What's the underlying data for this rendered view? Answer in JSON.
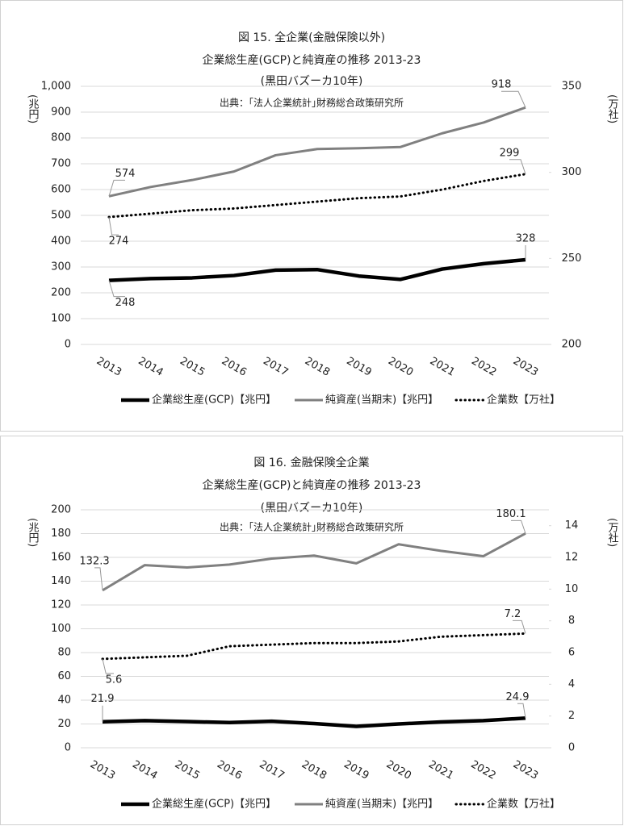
{
  "chart_data": [
    {
      "type": "line",
      "title": "図 15.  全企業(金融保険以外)",
      "subtitle": [
        "企業総生産(GCP)と純資産の推移  2013-23",
        "(黒田バズーカ10年)"
      ],
      "source": "出典：｢法人企業統計｣財務総合政策研究所",
      "y_label": "(兆円)",
      "y2_label": "(万社)",
      "categories": [
        "2013",
        "2014",
        "2015",
        "2016",
        "2017",
        "2018",
        "2019",
        "2020",
        "2021",
        "2022",
        "2023"
      ],
      "ylim": [
        0,
        1000
      ],
      "yticks": [
        0,
        100,
        200,
        300,
        400,
        500,
        600,
        700,
        800,
        900,
        {
          "value": 1000,
          "label": "1,000"
        }
      ],
      "y2lim": [
        200,
        350
      ],
      "y2ticks": [
        200,
        250,
        300,
        350
      ],
      "grid": true,
      "legend": "bottom",
      "series": [
        {
          "name": "企業総生産(GCP)【兆円】",
          "color": "#000000",
          "linestyle": "solid",
          "values": [
            248,
            255,
            258,
            267,
            288,
            290,
            265,
            252,
            292,
            313,
            328
          ]
        },
        {
          "name": "純資産(当期末)【兆円】",
          "color": "#808080",
          "linestyle": "solid",
          "values": [
            574,
            610,
            637,
            670,
            733,
            757,
            760,
            765,
            818,
            860,
            918
          ]
        },
        {
          "name": "企業数【万社】",
          "color": "#000000",
          "linestyle": "dotted",
          "axis": "y2",
          "values": [
            274,
            276,
            278,
            279,
            281,
            283,
            285,
            286,
            290,
            295,
            299
          ]
        }
      ]
    },
    {
      "type": "line",
      "title": "図 16. 金融保険全企業",
      "subtitle": [
        "企業総生産(GCP)と純資産の推移   2013-23",
        "(黒田バズーカ10年)"
      ],
      "source": "出典：｢法人企業統計｣財務総合政策研究所",
      "y_label": "(兆円)",
      "y2_label": "(万社)",
      "categories": [
        "2013",
        "2014",
        "2015",
        "2016",
        "2017",
        "2018",
        "2019",
        "2020",
        "2021",
        "2022",
        "2023"
      ],
      "ylim": [
        0,
        200
      ],
      "yticks": [
        0,
        20,
        40,
        60,
        80,
        100,
        120,
        140,
        160,
        180,
        200
      ],
      "y2lim": [
        0,
        15
      ],
      "y2ticks": [
        0,
        2,
        4,
        6,
        8,
        10,
        12,
        14
      ],
      "grid": true,
      "legend": "bottom",
      "series": [
        {
          "name": "企業総生産(GCP)【兆円】",
          "color": "#000000",
          "linestyle": "solid",
          "values": [
            21.9,
            22.8,
            22.0,
            21.2,
            22.3,
            20.3,
            18.0,
            20.0,
            21.7,
            22.8,
            24.9
          ]
        },
        {
          "name": "純資産(当期末)【兆円】",
          "color": "#808080",
          "linestyle": "solid",
          "values": [
            132.3,
            153.5,
            151.5,
            154,
            159,
            161.5,
            155,
            171,
            165.5,
            161,
            180.1
          ]
        },
        {
          "name": "企業数【万社】",
          "color": "#000000",
          "linestyle": "dotted",
          "axis": "y2",
          "values": [
            5.6,
            5.7,
            5.8,
            6.4,
            6.5,
            6.6,
            6.6,
            6.7,
            7.0,
            7.1,
            7.2
          ]
        }
      ]
    }
  ]
}
